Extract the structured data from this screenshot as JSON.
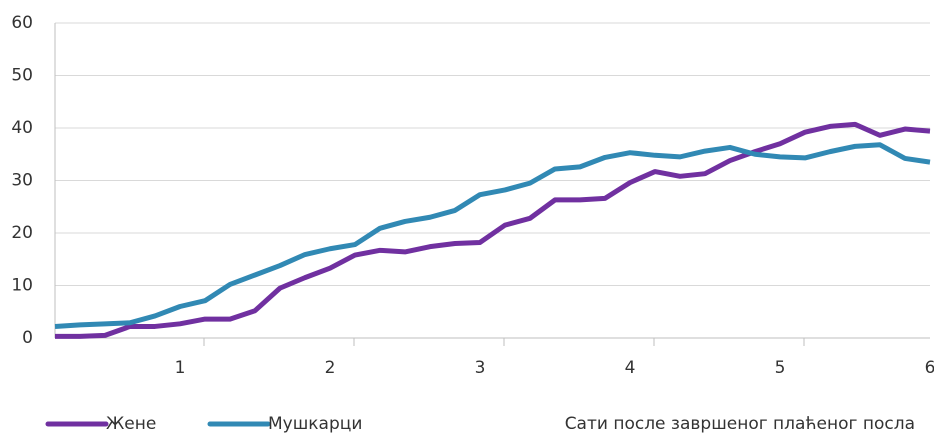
{
  "chart_data": {
    "type": "line",
    "categories": [
      null,
      null,
      null,
      null,
      null,
      "1",
      null,
      null,
      null,
      null,
      null,
      "2",
      null,
      null,
      null,
      null,
      null,
      "3",
      null,
      null,
      null,
      null,
      null,
      "4",
      null,
      null,
      null,
      null,
      null,
      "5",
      null,
      null,
      null,
      null,
      null,
      "6"
    ],
    "series": [
      {
        "name": "Жене",
        "color": "#7030a0",
        "values": [
          0.3,
          0.3,
          0.5,
          2.2,
          2.2,
          2.7,
          3.6,
          3.6,
          5.2,
          9.5,
          11.5,
          13.3,
          15.8,
          16.7,
          16.4,
          17.4,
          18,
          18.2,
          21.5,
          22.8,
          26.3,
          26.3,
          26.6,
          29.6,
          31.7,
          30.8,
          31.3,
          33.8,
          35.5,
          37,
          39.2,
          40.3,
          40.7,
          38.6,
          39.8,
          39.4
        ]
      },
      {
        "name": "Мушкарци",
        "color": "#3189b4",
        "values": [
          2.2,
          2.5,
          2.7,
          2.9,
          4.2,
          6,
          7.1,
          10.2,
          12,
          13.8,
          15.9,
          17,
          17.8,
          20.9,
          22.2,
          23,
          24.3,
          27.3,
          28.2,
          29.5,
          32.2,
          32.6,
          34.4,
          35.3,
          34.8,
          34.5,
          35.6,
          36.3,
          35,
          34.5,
          34.3,
          35.5,
          36.5,
          36.8,
          34.2,
          33.5
        ]
      }
    ],
    "x_label": "Сати после завршеног плаћеног посла",
    "ylim": [
      0,
      60
    ],
    "yticks": [
      0,
      10,
      20,
      30,
      40,
      50,
      60
    ],
    "grid": true
  }
}
